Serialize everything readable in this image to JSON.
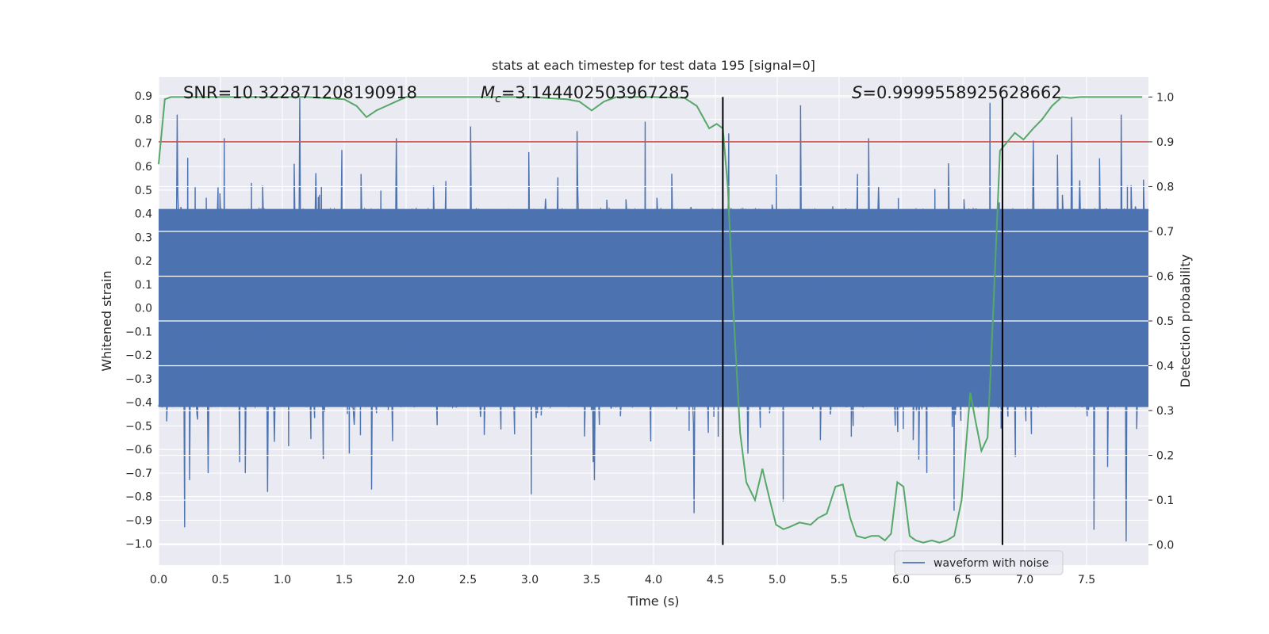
{
  "chart_data": {
    "type": "line",
    "title": "stats at each timestep for test data 195 [signal=0]",
    "xlabel": "Time (s)",
    "ylabel": "Whitened strain",
    "y2label": "Detection probability",
    "xlim": [
      0.0,
      8.0
    ],
    "ylim": [
      -1.09,
      0.98
    ],
    "y2lim": [
      -0.045,
      1.045
    ],
    "x_ticks": [
      0.0,
      0.5,
      1.0,
      1.5,
      2.0,
      2.5,
      3.0,
      3.5,
      4.0,
      4.5,
      5.0,
      5.5,
      6.0,
      6.5,
      7.0,
      7.5
    ],
    "x_tick_labels": [
      "0.0",
      "0.5",
      "1.0",
      "1.5",
      "2.0",
      "2.5",
      "3.0",
      "3.5",
      "4.0",
      "4.5",
      "5.0",
      "5.5",
      "6.0",
      "6.5",
      "7.0",
      "7.5"
    ],
    "y_ticks": [
      0.9,
      0.8,
      0.7,
      0.6,
      0.5,
      0.4,
      0.3,
      0.2,
      0.1,
      0.0,
      -0.1,
      -0.2,
      -0.3,
      -0.4,
      -0.5,
      -0.6,
      -0.7,
      -0.8,
      -0.9,
      -1.0
    ],
    "y_tick_labels": [
      "0.9",
      "0.8",
      "0.7",
      "0.6",
      "0.5",
      "0.4",
      "0.3",
      "0.2",
      "0.1",
      "0.0",
      "−0.1",
      "−0.2",
      "−0.3",
      "−0.4",
      "−0.5",
      "−0.6",
      "−0.7",
      "−0.8",
      "−0.9",
      "−1.0"
    ],
    "y2_ticks": [
      1.0,
      0.9,
      0.8,
      0.7,
      0.6,
      0.5,
      0.4,
      0.3,
      0.2,
      0.1,
      0.0
    ],
    "y2_tick_labels": [
      "1.0",
      "0.9",
      "0.8",
      "0.7",
      "0.6",
      "0.5",
      "0.4",
      "0.3",
      "0.2",
      "0.1",
      "0.0"
    ],
    "grid": true,
    "annotations": {
      "snr": "SNR=10.322871208190918",
      "mc_prefix": "M",
      "mc_sub": "c",
      "mc_value": "=3.144402503967285",
      "s_prefix": "S",
      "s_value": "=0.9999558925628662"
    },
    "threshold_line": {
      "axis": "y2",
      "value": 0.9,
      "color": "#c44e52"
    },
    "vertical_lines": [
      4.56,
      6.82
    ],
    "waveform": {
      "name": "waveform with noise",
      "color": "#4c72b0",
      "t_start": 0.0,
      "t_end": 8.0,
      "samples": 1600,
      "core_amplitude": 0.42,
      "spikes": [
        [
          0.15,
          0.82
        ],
        [
          0.21,
          -0.93
        ],
        [
          0.25,
          -0.73
        ],
        [
          0.53,
          0.72
        ],
        [
          0.75,
          0.53
        ],
        [
          0.88,
          -0.78
        ],
        [
          1.14,
          0.89
        ],
        [
          1.33,
          -0.64
        ],
        [
          1.48,
          0.67
        ],
        [
          1.72,
          -0.77
        ],
        [
          1.92,
          0.72
        ],
        [
          2.52,
          0.77
        ],
        [
          3.01,
          -0.79
        ],
        [
          3.38,
          0.75
        ],
        [
          3.52,
          -0.73
        ],
        [
          3.93,
          0.79
        ],
        [
          4.33,
          -0.87
        ],
        [
          4.61,
          0.74
        ],
        [
          5.05,
          -0.82
        ],
        [
          5.19,
          0.86
        ],
        [
          5.74,
          0.72
        ],
        [
          6.21,
          -0.7
        ],
        [
          6.43,
          -0.86
        ],
        [
          6.72,
          0.87
        ],
        [
          7.07,
          0.71
        ],
        [
          7.38,
          0.81
        ],
        [
          7.56,
          -0.94
        ],
        [
          7.78,
          0.82
        ],
        [
          7.82,
          -0.99
        ]
      ]
    },
    "probability": {
      "color": "#55a868",
      "x": [
        0.0,
        0.05,
        0.1,
        0.3,
        0.6,
        0.9,
        1.2,
        1.5,
        1.6,
        1.68,
        1.76,
        1.84,
        1.92,
        2.0,
        2.5,
        3.0,
        3.3,
        3.4,
        3.5,
        3.6,
        3.7,
        4.0,
        4.25,
        4.35,
        4.45,
        4.51,
        4.56,
        4.6,
        4.65,
        4.7,
        4.75,
        4.82,
        4.88,
        4.94,
        4.99,
        5.05,
        5.1,
        5.18,
        5.27,
        5.33,
        5.4,
        5.47,
        5.53,
        5.59,
        5.64,
        5.71,
        5.76,
        5.82,
        5.87,
        5.92,
        5.97,
        6.02,
        6.07,
        6.12,
        6.18,
        6.25,
        6.31,
        6.37,
        6.43,
        6.49,
        6.56,
        6.6,
        6.65,
        6.7,
        6.75,
        6.8,
        6.86,
        6.92,
        6.99,
        7.07,
        7.14,
        7.22,
        7.3,
        7.37,
        7.45,
        7.55,
        7.7,
        7.8,
        7.95
      ],
      "y": [
        0.85,
        0.995,
        1.0,
        1.0,
        1.0,
        1.0,
        1.0,
        0.995,
        0.98,
        0.955,
        0.97,
        0.98,
        0.99,
        1.0,
        1.0,
        1.0,
        0.995,
        0.99,
        0.97,
        0.99,
        1.0,
        1.0,
        0.998,
        0.98,
        0.93,
        0.94,
        0.93,
        0.8,
        0.5,
        0.25,
        0.14,
        0.1,
        0.17,
        0.1,
        0.045,
        0.035,
        0.04,
        0.05,
        0.045,
        0.06,
        0.07,
        0.13,
        0.135,
        0.06,
        0.02,
        0.015,
        0.02,
        0.02,
        0.01,
        0.025,
        0.14,
        0.13,
        0.02,
        0.01,
        0.005,
        0.01,
        0.005,
        0.01,
        0.02,
        0.1,
        0.34,
        0.28,
        0.21,
        0.24,
        0.55,
        0.88,
        0.9,
        0.92,
        0.905,
        0.93,
        0.95,
        0.98,
        1.0,
        0.998,
        1.0,
        1.0,
        1.0,
        1.0,
        1.0
      ]
    },
    "legend": {
      "label": "waveform with noise",
      "placement": "lower-center-right"
    }
  }
}
